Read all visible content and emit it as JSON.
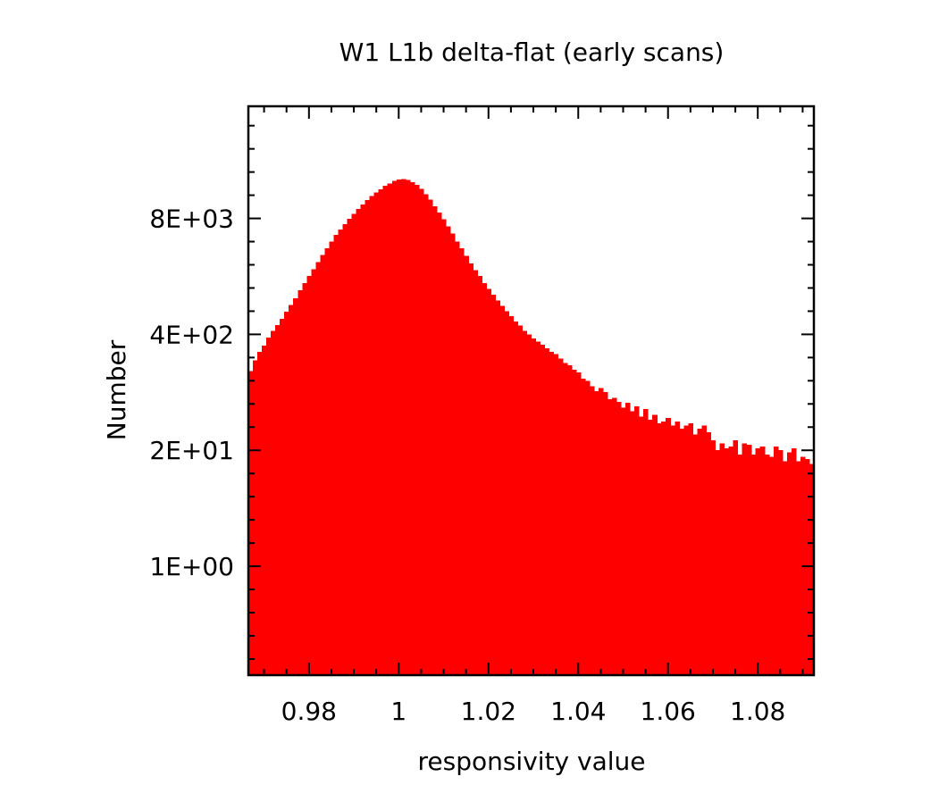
{
  "chart_data": {
    "type": "bar",
    "title": "W1 L1b delta-flat (early scans)",
    "xlabel": "responsivity value",
    "ylabel": "Number",
    "y_scale": "log",
    "xlim": [
      0.9665,
      1.0925
    ],
    "ylim": [
      0.06,
      145000
    ],
    "x_ticks": [
      {
        "value": 0.98,
        "label": "0.98"
      },
      {
        "value": 1.0,
        "label": "1"
      },
      {
        "value": 1.02,
        "label": "1.02"
      },
      {
        "value": 1.04,
        "label": "1.04"
      },
      {
        "value": 1.06,
        "label": "1.06"
      },
      {
        "value": 1.08,
        "label": "1.08"
      }
    ],
    "y_ticks": [
      {
        "value": 1,
        "label": "1E+00"
      },
      {
        "value": 20,
        "label": "2E+01"
      },
      {
        "value": 400,
        "label": "4E+02"
      },
      {
        "value": 8000,
        "label": "8E+03"
      }
    ],
    "bin_width": 0.001,
    "series": [
      {
        "color": "#ff0000",
        "x": [
          0.967,
          0.968,
          0.969,
          0.97,
          0.971,
          0.972,
          0.973,
          0.974,
          0.975,
          0.976,
          0.977,
          0.978,
          0.979,
          0.98,
          0.981,
          0.982,
          0.983,
          0.984,
          0.985,
          0.986,
          0.987,
          0.988,
          0.989,
          0.99,
          0.991,
          0.992,
          0.993,
          0.994,
          0.995,
          0.996,
          0.997,
          0.998,
          0.999,
          1.0,
          1.001,
          1.002,
          1.003,
          1.004,
          1.005,
          1.006,
          1.007,
          1.008,
          1.009,
          1.01,
          1.011,
          1.012,
          1.013,
          1.014,
          1.015,
          1.016,
          1.017,
          1.018,
          1.019,
          1.02,
          1.021,
          1.022,
          1.023,
          1.024,
          1.025,
          1.026,
          1.027,
          1.028,
          1.029,
          1.03,
          1.031,
          1.032,
          1.033,
          1.034,
          1.035,
          1.036,
          1.037,
          1.038,
          1.039,
          1.04,
          1.041,
          1.042,
          1.043,
          1.044,
          1.045,
          1.046,
          1.047,
          1.048,
          1.049,
          1.05,
          1.051,
          1.052,
          1.053,
          1.054,
          1.055,
          1.056,
          1.057,
          1.058,
          1.059,
          1.06,
          1.061,
          1.062,
          1.063,
          1.064,
          1.065,
          1.066,
          1.067,
          1.068,
          1.069,
          1.07,
          1.071,
          1.072,
          1.073,
          1.074,
          1.075,
          1.076,
          1.077,
          1.078,
          1.079,
          1.08,
          1.081,
          1.082,
          1.083,
          1.084,
          1.085,
          1.086,
          1.087,
          1.088,
          1.089,
          1.09,
          1.091,
          1.092
        ],
        "values": [
          155,
          205,
          255,
          300,
          370,
          440,
          510,
          600,
          720,
          850,
          1020,
          1250,
          1500,
          1800,
          2150,
          2600,
          3100,
          3700,
          4400,
          5200,
          6000,
          6900,
          7900,
          9000,
          10200,
          11500,
          12800,
          14200,
          15600,
          17000,
          18500,
          19800,
          21000,
          21800,
          22000,
          21500,
          20500,
          19000,
          17200,
          15000,
          13000,
          11000,
          9300,
          7800,
          6500,
          5400,
          4400,
          3700,
          3050,
          2500,
          2100,
          1800,
          1500,
          1300,
          1120,
          960,
          840,
          730,
          640,
          560,
          500,
          440,
          400,
          360,
          330,
          305,
          280,
          255,
          240,
          215,
          190,
          180,
          160,
          150,
          128,
          120,
          105,
          92,
          100,
          90,
          75,
          78,
          70,
          60,
          68,
          55,
          62,
          48,
          58,
          44,
          50,
          40,
          42,
          46,
          38,
          42,
          35,
          38,
          40,
          30,
          35,
          38,
          32,
          26,
          20,
          24,
          21,
          22,
          26,
          18,
          24,
          23,
          18,
          21,
          22,
          18,
          17,
          22,
          20,
          15,
          19,
          21,
          15,
          17,
          16,
          14
        ]
      }
    ]
  }
}
